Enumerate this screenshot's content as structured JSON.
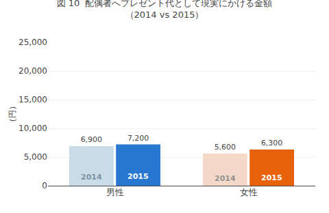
{
  "chart_data": {
    "type": "bar",
    "title": "図 10  配偶者へプレゼント代として現実にかける金額",
    "subtitle": "（2014 vs 2015）",
    "y_label": "（円）",
    "categories": [
      "男性",
      "女性"
    ],
    "series": [
      {
        "name": "2014",
        "values": [
          6900,
          5600
        ],
        "value_labels": [
          "6,900",
          "5,600"
        ],
        "colors": [
          "#c8dce8",
          "#f5d9c8"
        ]
      },
      {
        "name": "2015",
        "values": [
          7200,
          6300
        ],
        "value_labels": [
          "7,200",
          "6,300"
        ],
        "colors": [
          "#2878d2",
          "#e8620a"
        ]
      }
    ],
    "ylim": [
      0,
      25000
    ],
    "yticks": [
      0,
      {
        "value": 5000,
        "label": "5,000"
      },
      {
        "value": 10000,
        "label": "10,000"
      },
      {
        "value": 15000,
        "label": "15,000"
      },
      {
        "value": 20000,
        "label": "20,000"
      },
      {
        "value": 25000,
        "label": "25,000"
      }
    ],
    "grid": true,
    "data_labels": true
  }
}
